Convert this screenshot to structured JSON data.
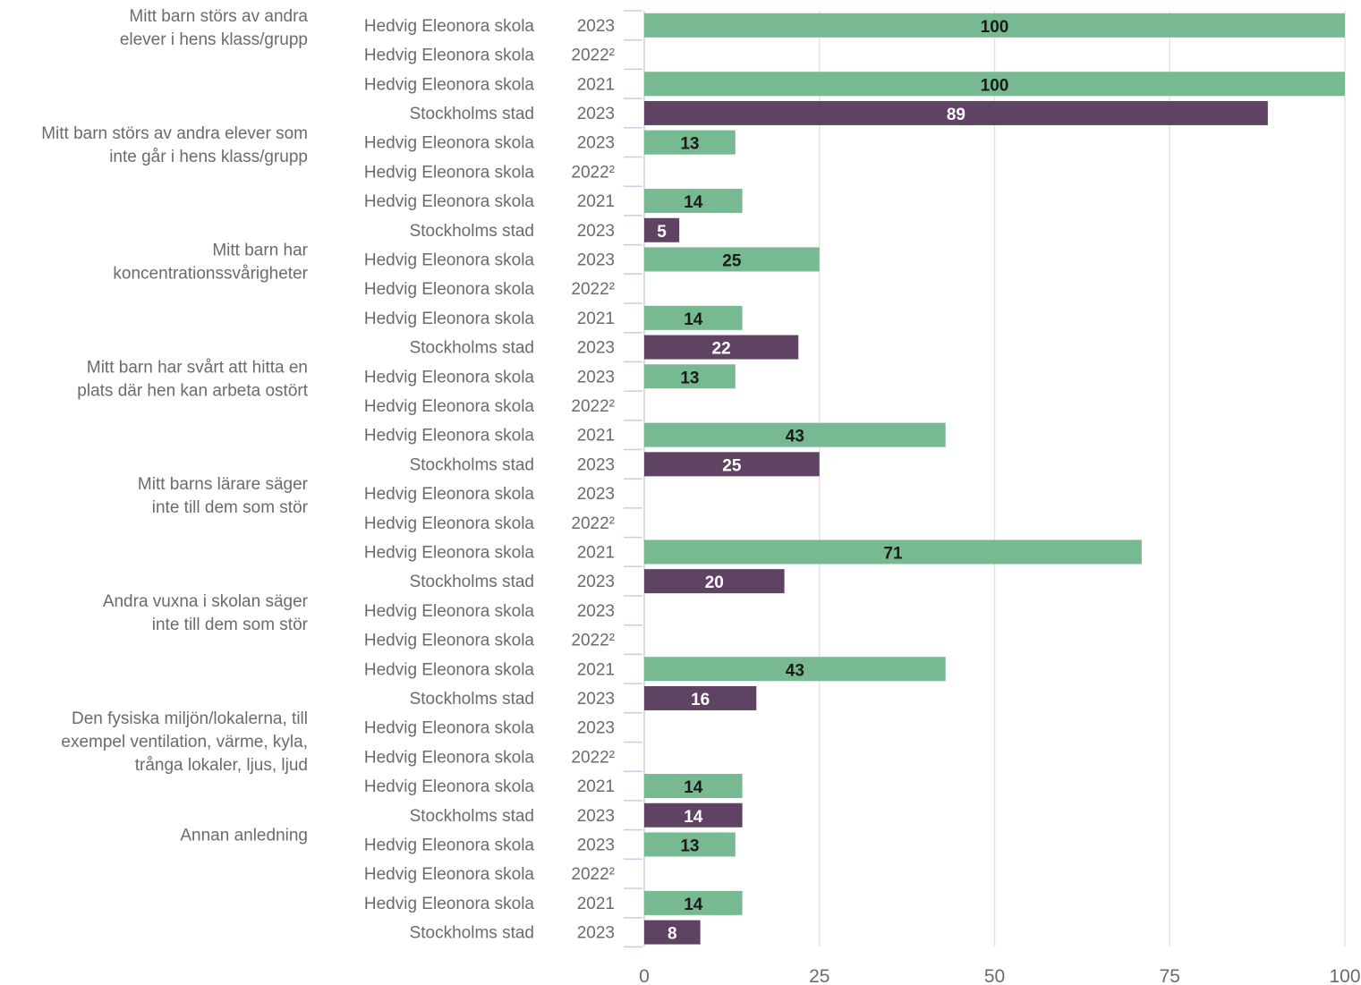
{
  "chart_data": {
    "type": "bar",
    "orientation": "horizontal",
    "title": "",
    "xlabel": "",
    "ylabel": "",
    "xlim": [
      0,
      100
    ],
    "xticks": [
      "0",
      "25",
      "50",
      "75",
      "100"
    ],
    "grid": true,
    "colors": {
      "Hedvig Eleonora skola": "#77b991",
      "Stockholms stad": "#5e4462"
    },
    "groups": [
      {
        "label": [
          "Mitt barn störs av andra",
          "elever i hens klass/grupp"
        ],
        "rows": [
          {
            "source": "Hedvig Eleonora skola",
            "year": "2023",
            "value": 100
          },
          {
            "source": "Hedvig Eleonora skola",
            "year": "2022²",
            "value": null
          },
          {
            "source": "Hedvig Eleonora skola",
            "year": "2021",
            "value": 100
          },
          {
            "source": "Stockholms stad",
            "year": "2023",
            "value": 89
          }
        ]
      },
      {
        "label": [
          "Mitt barn störs av andra elever som",
          "inte går i hens klass/grupp"
        ],
        "rows": [
          {
            "source": "Hedvig Eleonora skola",
            "year": "2023",
            "value": 13
          },
          {
            "source": "Hedvig Eleonora skola",
            "year": "2022²",
            "value": null
          },
          {
            "source": "Hedvig Eleonora skola",
            "year": "2021",
            "value": 14
          },
          {
            "source": "Stockholms stad",
            "year": "2023",
            "value": 5
          }
        ]
      },
      {
        "label": [
          "Mitt barn har",
          "koncentrationssvårigheter"
        ],
        "rows": [
          {
            "source": "Hedvig Eleonora skola",
            "year": "2023",
            "value": 25
          },
          {
            "source": "Hedvig Eleonora skola",
            "year": "2022²",
            "value": null
          },
          {
            "source": "Hedvig Eleonora skola",
            "year": "2021",
            "value": 14
          },
          {
            "source": "Stockholms stad",
            "year": "2023",
            "value": 22
          }
        ]
      },
      {
        "label": [
          "Mitt barn har svårt att hitta en",
          "plats där hen kan arbeta ostört"
        ],
        "rows": [
          {
            "source": "Hedvig Eleonora skola",
            "year": "2023",
            "value": 13
          },
          {
            "source": "Hedvig Eleonora skola",
            "year": "2022²",
            "value": null
          },
          {
            "source": "Hedvig Eleonora skola",
            "year": "2021",
            "value": 43
          },
          {
            "source": "Stockholms stad",
            "year": "2023",
            "value": 25
          }
        ]
      },
      {
        "label": [
          "Mitt barns lärare säger",
          "inte till dem som stör"
        ],
        "rows": [
          {
            "source": "Hedvig Eleonora skola",
            "year": "2023",
            "value": null
          },
          {
            "source": "Hedvig Eleonora skola",
            "year": "2022²",
            "value": null
          },
          {
            "source": "Hedvig Eleonora skola",
            "year": "2021",
            "value": 71
          },
          {
            "source": "Stockholms stad",
            "year": "2023",
            "value": 20
          }
        ]
      },
      {
        "label": [
          "Andra vuxna i skolan säger",
          "inte till dem som stör"
        ],
        "rows": [
          {
            "source": "Hedvig Eleonora skola",
            "year": "2023",
            "value": null
          },
          {
            "source": "Hedvig Eleonora skola",
            "year": "2022²",
            "value": null
          },
          {
            "source": "Hedvig Eleonora skola",
            "year": "2021",
            "value": 43
          },
          {
            "source": "Stockholms stad",
            "year": "2023",
            "value": 16
          }
        ]
      },
      {
        "label": [
          "Den fysiska miljön/lokalerna, till",
          "exempel ventilation, värme, kyla,",
          "trånga lokaler, ljus, ljud"
        ],
        "rows": [
          {
            "source": "Hedvig Eleonora skola",
            "year": "2023",
            "value": null
          },
          {
            "source": "Hedvig Eleonora skola",
            "year": "2022²",
            "value": null
          },
          {
            "source": "Hedvig Eleonora skola",
            "year": "2021",
            "value": 14
          },
          {
            "source": "Stockholms stad",
            "year": "2023",
            "value": 14
          }
        ]
      },
      {
        "label": [
          "Annan anledning"
        ],
        "rows": [
          {
            "source": "Hedvig Eleonora skola",
            "year": "2023",
            "value": 13
          },
          {
            "source": "Hedvig Eleonora skola",
            "year": "2022²",
            "value": null
          },
          {
            "source": "Hedvig Eleonora skola",
            "year": "2021",
            "value": 14
          },
          {
            "source": "Stockholms stad",
            "year": "2023",
            "value": 8
          }
        ]
      }
    ]
  }
}
